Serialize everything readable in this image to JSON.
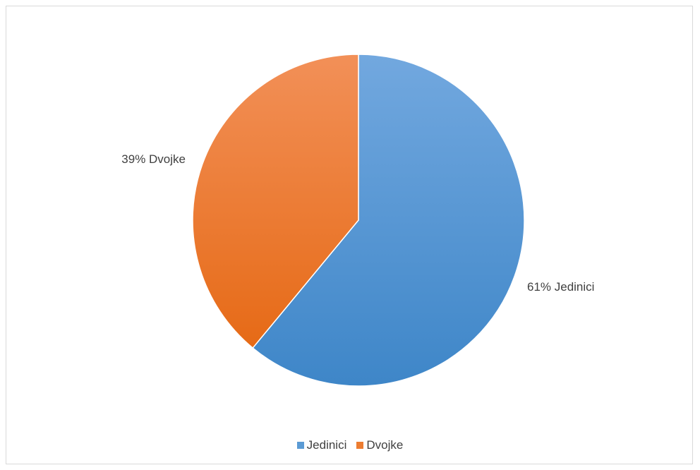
{
  "chart_data": {
    "type": "pie",
    "title": "",
    "categories": [
      "Jedinici",
      "Dvojke"
    ],
    "values": [
      61,
      39
    ],
    "data_labels": [
      "61% Jedinici",
      "39% Dvojke"
    ],
    "colors": [
      "#5b9bd5",
      "#ed7d31"
    ],
    "legend_position": "bottom",
    "legend": [
      {
        "label": "Jedinici",
        "color": "#5b9bd5"
      },
      {
        "label": "Dvojke",
        "color": "#ed7d31"
      }
    ]
  }
}
